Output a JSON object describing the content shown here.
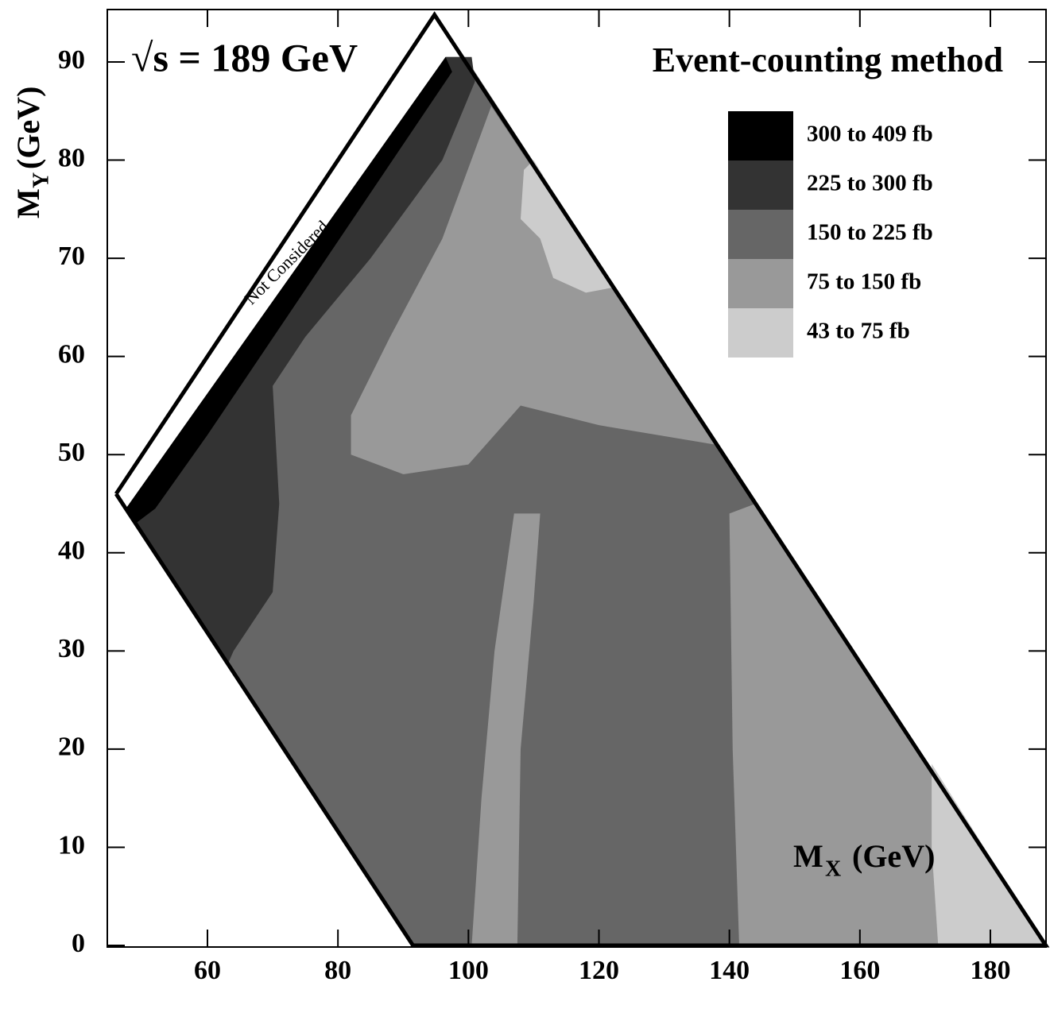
{
  "chart_data": {
    "type": "region-map",
    "title": "Event-counting method",
    "annotations": [
      "√s = 189 GeV",
      "Not Considered"
    ],
    "xlabel": {
      "symbol": "M",
      "sub": "X",
      "unit": "(GeV)"
    },
    "ylabel": {
      "symbol": "M",
      "sub": "Y",
      "unit": "(GeV)"
    },
    "xlim": [
      44.65,
      188.53
    ],
    "ylim": [
      -0.16,
      95.34
    ],
    "xticks": [
      60,
      80,
      100,
      120,
      140,
      160,
      180
    ],
    "yticks": [
      0,
      10,
      20,
      30,
      40,
      50,
      60,
      70,
      80,
      90
    ],
    "legend": "upper right",
    "boundary": [
      [
        46,
        46
      ],
      [
        94.8,
        94.8
      ],
      [
        188.5,
        0
      ],
      [
        91.5,
        0
      ],
      [
        46,
        46
      ]
    ],
    "series": [
      {
        "name": "300 to 409 fb",
        "color": "#000000",
        "polygons": [
          [
            [
              47.5,
              44.5
            ],
            [
              96.5,
              90.5
            ],
            [
              97.5,
              89
            ],
            [
              60,
              52
            ],
            [
              52,
              44.5
            ],
            [
              49,
              43
            ]
          ]
        ]
      },
      {
        "name": "225 to 300 fb",
        "color": "#333333",
        "polygons": [
          [
            [
              47.5,
              44.5
            ],
            [
              96.5,
              90.5
            ],
            [
              100.5,
              90.5
            ],
            [
              101,
              88
            ],
            [
              96,
              80
            ],
            [
              85,
              70
            ],
            [
              75,
              62
            ],
            [
              70,
              57
            ],
            [
              71,
              45
            ],
            [
              70,
              36
            ],
            [
              64,
              30
            ],
            [
              63,
              28.5
            ]
          ]
        ]
      },
      {
        "name": "150 to 225 fb",
        "color": "#666666",
        "polygons": [
          [
            [
              47.5,
              44.5
            ],
            [
              96.5,
              90.5
            ],
            [
              99.5,
              90.5
            ],
            [
              188.5,
              0
            ],
            [
              91.5,
              0
            ]
          ]
        ]
      },
      {
        "name": "75 to 150 fb",
        "color": "#999999",
        "polygons": [
          [
            [
              82,
              54
            ],
            [
              88,
              62
            ],
            [
              96,
              72
            ],
            [
              103.5,
              85.5
            ],
            [
              138,
              51
            ],
            [
              120,
              53
            ],
            [
              108,
              55
            ],
            [
              100,
              49
            ],
            [
              90,
              48
            ],
            [
              82,
              50
            ]
          ],
          [
            [
              100.5,
              0
            ],
            [
              107.5,
              0
            ],
            [
              108,
              20
            ],
            [
              110,
              35
            ],
            [
              111,
              44
            ],
            [
              107,
              44
            ],
            [
              104,
              30
            ],
            [
              102,
              15
            ]
          ],
          [
            [
              141.5,
              0
            ],
            [
              188.5,
              0
            ],
            [
              144,
              45
            ],
            [
              140,
              44
            ],
            [
              140.5,
              20
            ]
          ]
        ]
      },
      {
        "name": "43 to 75 fb",
        "color": "#cccccc",
        "polygons": [
          [
            [
              108.5,
              79
            ],
            [
              110,
              80
            ],
            [
              122,
              67
            ],
            [
              118,
              66.5
            ],
            [
              113,
              68
            ],
            [
              111,
              72
            ],
            [
              108,
              74
            ]
          ],
          [
            [
              172,
              0
            ],
            [
              188.5,
              0
            ],
            [
              171,
              18.5
            ],
            [
              171,
              10
            ]
          ]
        ]
      }
    ]
  }
}
